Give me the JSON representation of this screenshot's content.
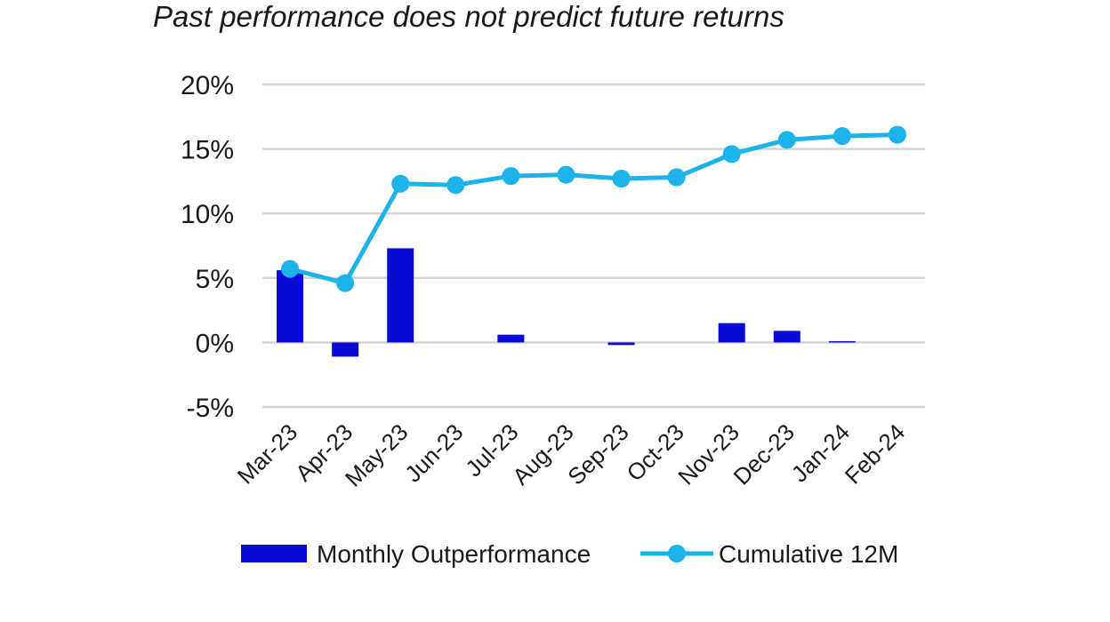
{
  "subtitle": "Past performance does not predict future returns",
  "colors": {
    "bar": "#0a0ad6",
    "line": "#1bb3ea",
    "grid": "#d4d4d4",
    "text": "#1a1a1a"
  },
  "chart_data": {
    "type": "bar+line",
    "categories": [
      "Mar-23",
      "Apr-23",
      "May-23",
      "Jun-23",
      "Jul-23",
      "Aug-23",
      "Sep-23",
      "Oct-23",
      "Nov-23",
      "Dec-23",
      "Jan-24",
      "Feb-24"
    ],
    "series": [
      {
        "name": "Monthly Outperformance",
        "type": "bar",
        "values": [
          5.6,
          -1.1,
          7.3,
          0.0,
          0.6,
          0.0,
          -0.2,
          0.0,
          1.5,
          0.9,
          0.1,
          0.0
        ]
      },
      {
        "name": "Cumulative 12M",
        "type": "line",
        "values": [
          5.7,
          4.6,
          12.3,
          12.2,
          12.9,
          13.0,
          12.7,
          12.8,
          14.6,
          15.7,
          16.0,
          16.1
        ]
      }
    ],
    "ylim": [
      -5,
      20
    ],
    "yticks": [
      -5,
      0,
      5,
      10,
      15,
      20
    ],
    "ytick_labels": [
      "-5%",
      "0%",
      "5%",
      "10%",
      "15%",
      "20%"
    ],
    "grid": true,
    "legend_position": "bottom"
  }
}
